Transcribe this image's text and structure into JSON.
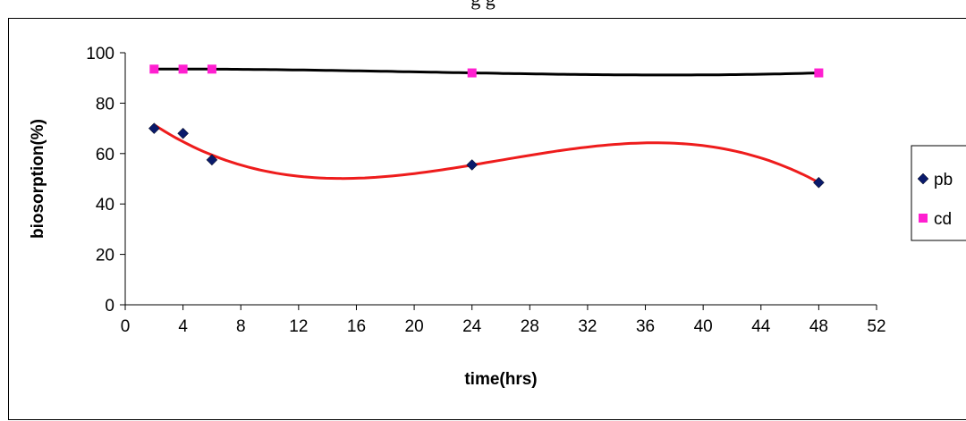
{
  "header_fragment": "g                g",
  "chart_data": {
    "type": "scatter",
    "title": "",
    "xlabel": "time(hrs)",
    "ylabel": "biosorption(%)",
    "xlim": [
      0,
      52
    ],
    "ylim": [
      0,
      100
    ],
    "x_ticks": [
      "0",
      "4",
      "8",
      "12",
      "16",
      "20",
      "24",
      "28",
      "32",
      "36",
      "40",
      "44",
      "48",
      "52"
    ],
    "y_ticks": [
      "0",
      "20",
      "40",
      "60",
      "80",
      "100"
    ],
    "grid": false,
    "legend_position": "right",
    "series": [
      {
        "name": "pb",
        "marker": "diamond",
        "color": "#0a1a6b",
        "trend_color": "#ee1c1c",
        "x": [
          2,
          4,
          6,
          24,
          48
        ],
        "y": [
          70,
          68,
          57.5,
          55.5,
          48.5
        ]
      },
      {
        "name": "cd",
        "marker": "square",
        "color": "#ff1fd0",
        "trend_color": "#000000",
        "x": [
          2,
          4,
          6,
          24,
          48
        ],
        "y": [
          93.5,
          93.5,
          93.5,
          92,
          92
        ]
      }
    ]
  }
}
